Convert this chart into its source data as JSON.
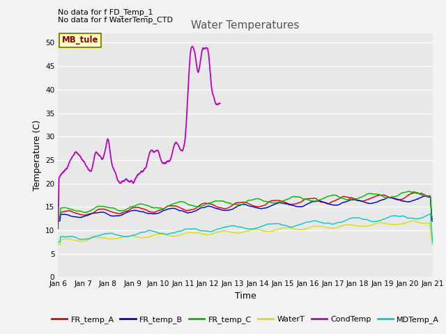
{
  "title": "Water Temperatures",
  "xlabel": "Time",
  "ylabel": "Temperature (C)",
  "annotations": [
    "No data for f FD_Temp_1",
    "No data for f WaterTemp_CTD"
  ],
  "mb_tule_label": "MB_tule",
  "x_tick_labels": [
    "Jan 6",
    "Jan 7",
    "Jan 8",
    "Jan 9",
    "Jan 10",
    "Jan 11",
    "Jan 12",
    "Jan 13",
    "Jan 14",
    "Jan 15",
    "Jan 16",
    "Jan 17",
    "Jan 18",
    "Jan 19",
    "Jan 20",
    "Jan 21"
  ],
  "ylim": [
    0,
    52
  ],
  "yticks": [
    0,
    5,
    10,
    15,
    20,
    25,
    30,
    35,
    40,
    45,
    50
  ],
  "bg_color": "#e8e8e8",
  "grid_color": "#ffffff",
  "fig_bg": "#f2f2f2",
  "legend": [
    {
      "label": "FR_temp_A",
      "color": "#dd0000"
    },
    {
      "label": "FR_temp_B",
      "color": "#0000cc"
    },
    {
      "label": "FR_temp_C",
      "color": "#00bb00"
    },
    {
      "label": "WaterT",
      "color": "#dddd00"
    },
    {
      "label": "CondTemp",
      "color": "#bb00bb"
    },
    {
      "label": "MDTemp_A",
      "color": "#00cccc"
    }
  ],
  "n_points": 1500
}
